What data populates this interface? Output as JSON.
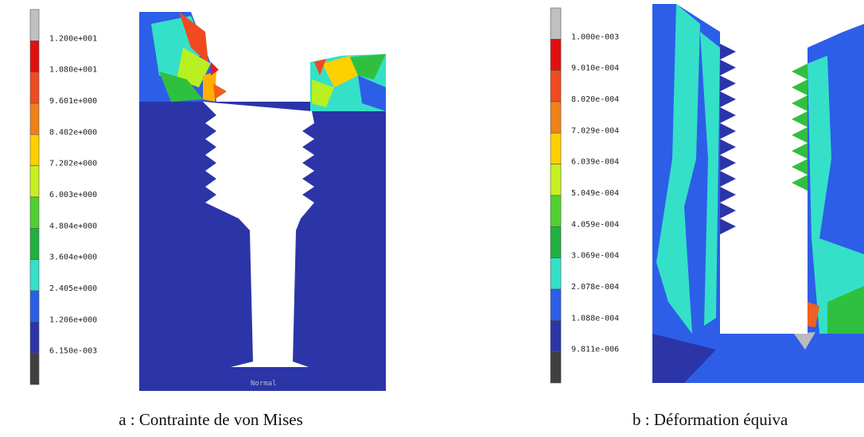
{
  "panels": [
    {
      "legend": [
        "1.200e+001",
        "1.080e+001",
        "9.601e+000",
        "8.402e+000",
        "7.202e+000",
        "6.003e+000",
        "4.804e+000",
        "3.604e+000",
        "2.405e+000",
        "1.206e+000",
        "6.150e-003"
      ],
      "view_label": "Normal",
      "caption": "a : Contrainte de von Mises"
    },
    {
      "legend": [
        "1.000e-003",
        "9.010e-004",
        "8.020e-004",
        "7.029e-004",
        "6.039e-004",
        "5.049e-004",
        "4.059e-004",
        "3.069e-004",
        "2.078e-004",
        "1.088e-004",
        "9.811e-006"
      ],
      "caption": "b : Déformation équiva"
    }
  ]
}
